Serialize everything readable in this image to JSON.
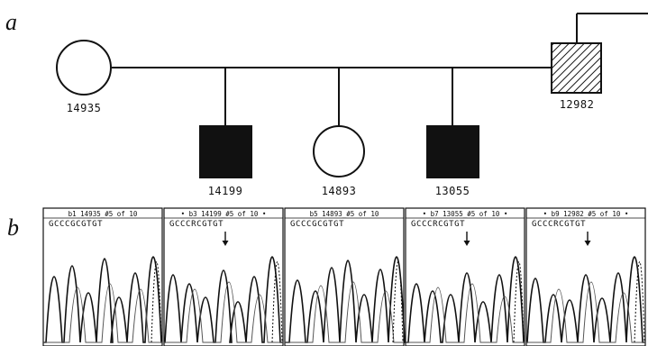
{
  "panels": {
    "a": {
      "letter": "a"
    },
    "b": {
      "letter": "b"
    }
  },
  "pedigree": {
    "individuals": [
      {
        "id": "14935",
        "label": "14935",
        "sex": "female",
        "status": "unaffected"
      },
      {
        "id": "12982",
        "label": "12982",
        "sex": "male",
        "status": "carrier-hatched"
      },
      {
        "id": "14199",
        "label": "14199",
        "sex": "male",
        "status": "affected"
      },
      {
        "id": "14893",
        "label": "14893",
        "sex": "female",
        "status": "unaffected"
      },
      {
        "id": "13055",
        "label": "13055",
        "sex": "male",
        "status": "affected"
      }
    ],
    "colors": {
      "affected": "#111111",
      "line": "#111111"
    }
  },
  "traces": [
    {
      "title": "b1 14935_#5 of 10",
      "sequence": "GCCCGCGTGT",
      "arrow": false
    },
    {
      "title": "• b3 14199_#5 of 10 •",
      "sequence": "GCCCRCGTGT",
      "arrow": true
    },
    {
      "title": "b5 14893_#5 of 10",
      "sequence": "GCCCGCGTGT",
      "arrow": false
    },
    {
      "title": "• b7 13055_#5 of 10 •",
      "sequence": "GCCCRCGTGT",
      "arrow": true
    },
    {
      "title": "• b9 12982_#5 of 10 •",
      "sequence": "GCCCRCGTGT",
      "arrow": true
    }
  ]
}
